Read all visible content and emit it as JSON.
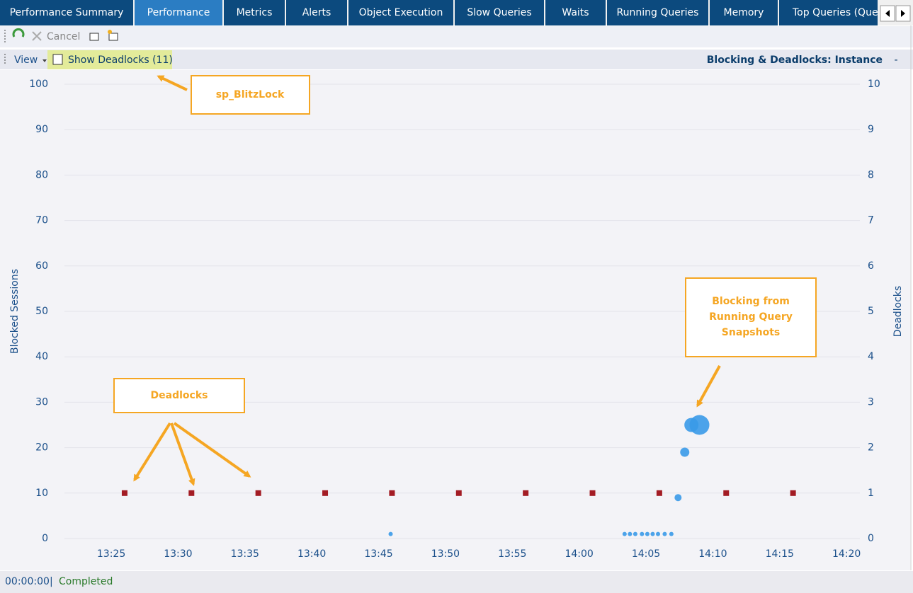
{
  "tabs": [
    "Performance Summary",
    "Performance",
    "Metrics",
    "Alerts",
    "Object Execution",
    "Slow Queries",
    "Waits",
    "Running Queries",
    "Memory",
    "Top Queries (Quer"
  ],
  "toolbar": {
    "cancel": "Cancel"
  },
  "view_bar": {
    "view": "View",
    "show_deadlocks": "Show Deadlocks (11)",
    "panel_title": "Blocking & Deadlocks: Instance",
    "collapse": "-"
  },
  "chart_data": {
    "type": "scatter",
    "y_label": "Blocked Sessions",
    "y2_label": "Deadlocks",
    "xlim": [
      801.5,
      861
    ],
    "xticks": [
      {
        "value": 805,
        "label": "13:25"
      },
      {
        "value": 810,
        "label": "13:30"
      },
      {
        "value": 815,
        "label": "13:35"
      },
      {
        "value": 820,
        "label": "13:40"
      },
      {
        "value": 825,
        "label": "13:45"
      },
      {
        "value": 830,
        "label": "13:50"
      },
      {
        "value": 835,
        "label": "13:55"
      },
      {
        "value": 840,
        "label": "14:00"
      },
      {
        "value": 845,
        "label": "14:05"
      },
      {
        "value": 850,
        "label": "14:10"
      },
      {
        "value": 855,
        "label": "14:15"
      },
      {
        "value": 860,
        "label": "14:20"
      }
    ],
    "ylim": [
      0,
      100
    ],
    "yticks": [
      0,
      10,
      20,
      30,
      40,
      50,
      60,
      70,
      80,
      90,
      100
    ],
    "y2lim": [
      0,
      10
    ],
    "y2ticks": [
      0,
      1,
      2,
      3,
      4,
      5,
      6,
      7,
      8,
      9,
      10
    ],
    "grid": true,
    "series": [
      {
        "color": "#3a9ae8",
        "marker": "circle",
        "x": [
          825.9,
          843.4,
          843.8,
          844.2,
          844.7,
          845.1,
          845.5,
          845.9,
          846.4,
          846.9,
          847.4,
          847.9,
          848.4,
          849.0
        ],
        "values": [
          1,
          1,
          1,
          1,
          1,
          1,
          1,
          1,
          1,
          1,
          9,
          19,
          25,
          25
        ],
        "sizes": [
          3,
          3,
          3,
          3,
          3,
          3,
          3,
          3,
          3,
          3,
          5,
          6.5,
          10,
          14
        ]
      },
      {
        "color": "#a31c24",
        "marker": "square",
        "axis": "y2",
        "x": [
          806,
          811,
          816,
          821,
          826,
          831,
          836,
          841,
          846,
          851,
          856
        ],
        "values": [
          1,
          1,
          1,
          1,
          1,
          1,
          1,
          1,
          1,
          1,
          1
        ]
      }
    ],
    "annotations": {
      "blitzlock": "sp_BlitzLock",
      "deadlocks": "Deadlocks",
      "blocking": [
        "Blocking from",
        "Running Query",
        "Snapshots"
      ]
    }
  },
  "status": {
    "time": "00:00:00",
    "separator": "|",
    "state": "Completed"
  }
}
